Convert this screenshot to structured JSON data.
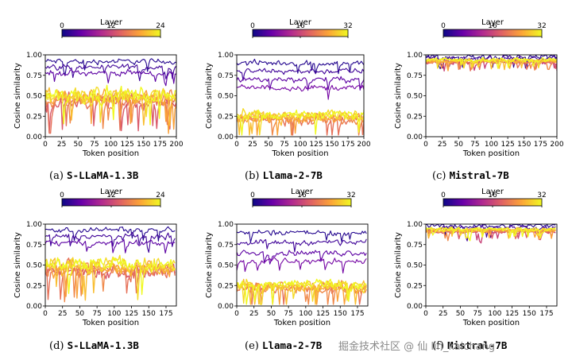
{
  "chart_data": [
    {
      "id": "a",
      "type": "line",
      "caption_label": "(a)",
      "caption_model": "S-LLaMA-1.3B",
      "xlabel": "Token position",
      "ylabel": "Cosine similarity",
      "xlim": [
        0,
        200
      ],
      "ylim": [
        0,
        1
      ],
      "xticks": [
        "0",
        "25",
        "50",
        "75",
        "100",
        "125",
        "150",
        "175",
        "200"
      ],
      "yticks": [
        "0.00",
        "0.25",
        "0.50",
        "0.75",
        "1.00"
      ],
      "colorbar": {
        "label": "Layer",
        "ticks": [
          "0",
          "12",
          "24"
        ],
        "max_layer": 24
      },
      "n_tokens": 205,
      "series_summary": {
        "high_layers": [
          0.92,
          0.85,
          0.78
        ],
        "band_mean": 0.45,
        "band_spread": 0.22
      }
    },
    {
      "id": "b",
      "type": "line",
      "caption_label": "(b)",
      "caption_model": "Llama-2-7B",
      "xlabel": "Token position",
      "ylabel": "Cosine similarity",
      "xlim": [
        0,
        200
      ],
      "ylim": [
        0,
        1
      ],
      "xticks": [
        "0",
        "25",
        "50",
        "75",
        "100",
        "125",
        "150",
        "175",
        "200"
      ],
      "yticks": [
        "0.00",
        "0.25",
        "0.50",
        "0.75",
        "1.00"
      ],
      "colorbar": {
        "label": "Layer",
        "ticks": [
          "0",
          "16",
          "32"
        ],
        "max_layer": 32
      },
      "n_tokens": 205,
      "series_summary": {
        "high_layers": [
          0.9,
          0.8,
          0.7,
          0.6
        ],
        "band_mean": 0.22,
        "band_spread": 0.15
      }
    },
    {
      "id": "c",
      "type": "line",
      "caption_label": "(c)",
      "caption_model": "Mistral-7B",
      "xlabel": "Token position",
      "ylabel": "Cosine similarity",
      "xlim": [
        0,
        200
      ],
      "ylim": [
        0,
        1
      ],
      "xticks": [
        "0",
        "25",
        "50",
        "75",
        "100",
        "125",
        "150",
        "175",
        "200"
      ],
      "yticks": [
        "0.00",
        "0.25",
        "0.50",
        "0.75",
        "1.00"
      ],
      "colorbar": {
        "label": "Layer",
        "ticks": [
          "0",
          "16",
          "32"
        ],
        "max_layer": 32
      },
      "n_tokens": 205,
      "series_summary": {
        "high_layers": [
          0.98,
          0.96
        ],
        "band_mean": 0.92,
        "band_spread": 0.06
      }
    },
    {
      "id": "d",
      "type": "line",
      "caption_label": "(d)",
      "caption_model": "S-LLaMA-1.3B",
      "xlabel": "Token position",
      "ylabel": "Cosine similarity",
      "xlim": [
        0,
        190
      ],
      "ylim": [
        0,
        1
      ],
      "xticks": [
        "0",
        "25",
        "50",
        "75",
        "100",
        "125",
        "150",
        "175"
      ],
      "yticks": [
        "0.00",
        "0.25",
        "0.50",
        "0.75",
        "1.00"
      ],
      "colorbar": {
        "label": "Layer",
        "ticks": [
          "0",
          "12",
          "24"
        ],
        "max_layer": 24
      },
      "n_tokens": 190,
      "series_summary": {
        "high_layers": [
          0.93,
          0.85,
          0.77
        ],
        "band_mean": 0.45,
        "band_spread": 0.22
      }
    },
    {
      "id": "e",
      "type": "line",
      "caption_label": "(e)",
      "caption_model": "Llama-2-7B",
      "xlabel": "Token position",
      "ylabel": "Cosine similarity",
      "xlim": [
        0,
        190
      ],
      "ylim": [
        0,
        1
      ],
      "xticks": [
        "0",
        "25",
        "50",
        "75",
        "100",
        "125",
        "150",
        "175"
      ],
      "yticks": [
        "0.00",
        "0.25",
        "0.50",
        "0.75",
        "1.00"
      ],
      "colorbar": {
        "label": "Layer",
        "ticks": [
          "0",
          "16",
          "32"
        ],
        "max_layer": 32
      },
      "n_tokens": 190,
      "series_summary": {
        "high_layers": [
          0.9,
          0.78,
          0.65,
          0.55
        ],
        "band_mean": 0.22,
        "band_spread": 0.15
      }
    },
    {
      "id": "f",
      "type": "line",
      "caption_label": "(f)",
      "caption_model": "Mistral-7B",
      "xlabel": "Token position",
      "ylabel": "Cosine similarity",
      "xlim": [
        0,
        190
      ],
      "ylim": [
        0,
        1
      ],
      "xticks": [
        "0",
        "25",
        "50",
        "75",
        "100",
        "125",
        "150",
        "175"
      ],
      "yticks": [
        "0.00",
        "0.25",
        "0.50",
        "0.75",
        "1.00"
      ],
      "colorbar": {
        "label": "Layer",
        "ticks": [
          "0",
          "16",
          "32"
        ],
        "max_layer": 32
      },
      "n_tokens": 190,
      "series_summary": {
        "high_layers": [
          0.98,
          0.96
        ],
        "band_mean": 0.92,
        "band_spread": 0.06
      }
    }
  ],
  "watermark": "掘金技术社区 @ 仙 lin_kaichang",
  "colors": {
    "c0": "#0d0887",
    "c1": "#6a00a8",
    "c2": "#b12a90",
    "c3": "#e16462",
    "c4": "#fca636",
    "c5": "#f0f921"
  }
}
